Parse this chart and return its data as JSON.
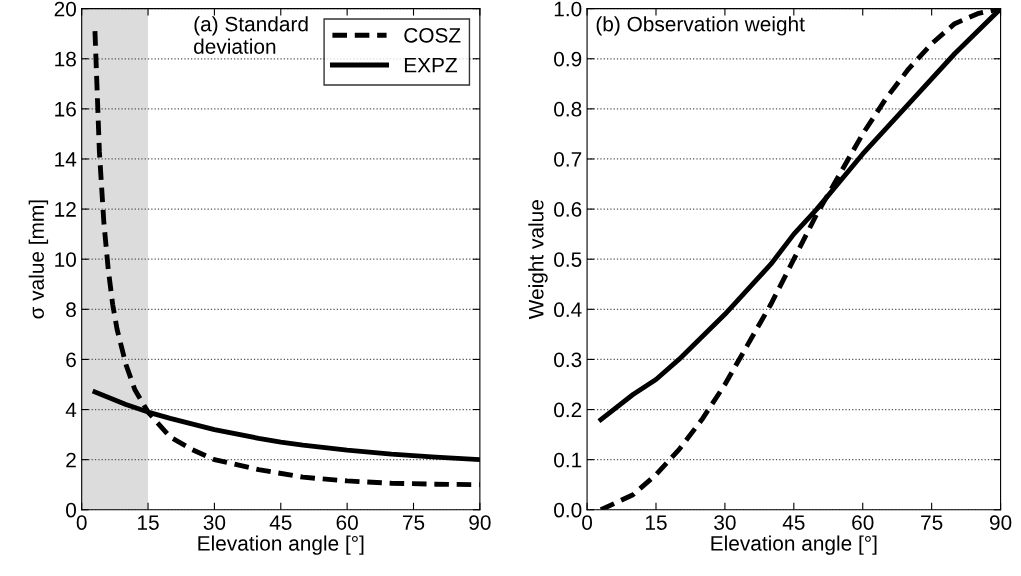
{
  "chart_data": [
    {
      "type": "line",
      "xlabel": "Elevation angle [°]",
      "ylabel": "σ value [mm]",
      "xlim": [
        0,
        90
      ],
      "ylim": [
        0,
        20
      ],
      "xticks": [
        0,
        15,
        30,
        45,
        60,
        75,
        90
      ],
      "yticks": [
        0,
        2,
        4,
        6,
        8,
        10,
        12,
        14,
        16,
        18,
        20
      ],
      "grid": "y",
      "legend": "top right",
      "annotations": [
        "(a) Standard\ndeviation"
      ],
      "bands": [
        {
          "axis": "x",
          "from": 0,
          "to": 15,
          "color": "#dcdcdc"
        }
      ],
      "series": [
        {
          "name": "COSZ",
          "color": "#000000",
          "line_style": "dashed",
          "x": [
            3,
            4,
            5,
            6,
            7,
            8,
            10,
            12,
            15,
            20,
            25,
            30,
            40,
            50,
            60,
            70,
            80,
            90
          ],
          "values": [
            19.1,
            14.3,
            11.5,
            9.6,
            8.2,
            7.2,
            5.8,
            4.8,
            3.9,
            2.9,
            2.4,
            2.0,
            1.6,
            1.3,
            1.15,
            1.06,
            1.02,
            1.0
          ]
        },
        {
          "name": "EXPZ",
          "color": "#000000",
          "line_style": "solid",
          "x": [
            3,
            10,
            15,
            20,
            30,
            40,
            45,
            50,
            60,
            70,
            80,
            90
          ],
          "values": [
            4.7,
            4.2,
            3.9,
            3.65,
            3.2,
            2.85,
            2.7,
            2.58,
            2.38,
            2.22,
            2.1,
            2.0
          ]
        }
      ]
    },
    {
      "type": "line",
      "xlabel": "Elevation angle [°]",
      "ylabel": "Weight value",
      "xlim": [
        0,
        90
      ],
      "ylim": [
        0,
        1
      ],
      "xticks": [
        0,
        15,
        30,
        45,
        60,
        75,
        90
      ],
      "yticks": [
        {
          "value": 0,
          "label": "0.0"
        },
        0.1,
        0.2,
        0.3,
        0.4,
        0.5,
        0.6,
        0.7,
        0.8,
        0.9,
        {
          "value": 1,
          "label": "1.0"
        }
      ],
      "grid": "y",
      "annotations": [
        "(b) Observation weight"
      ],
      "series": [
        {
          "color": "#000000",
          "line_style": "dashed",
          "x": [
            3,
            10,
            15,
            20,
            25,
            30,
            35,
            40,
            45,
            50,
            55,
            60,
            65,
            70,
            75,
            80,
            85,
            90
          ],
          "values": [
            0.0,
            0.03,
            0.07,
            0.12,
            0.18,
            0.25,
            0.33,
            0.41,
            0.5,
            0.59,
            0.67,
            0.75,
            0.82,
            0.88,
            0.93,
            0.97,
            0.99,
            1.0
          ]
        },
        {
          "color": "#000000",
          "line_style": "solid",
          "x": [
            3,
            10,
            15,
            20,
            30,
            40,
            45,
            50,
            60,
            70,
            80,
            90
          ],
          "values": [
            0.18,
            0.23,
            0.26,
            0.3,
            0.39,
            0.49,
            0.55,
            0.6,
            0.71,
            0.81,
            0.91,
            1.0
          ]
        }
      ]
    }
  ]
}
